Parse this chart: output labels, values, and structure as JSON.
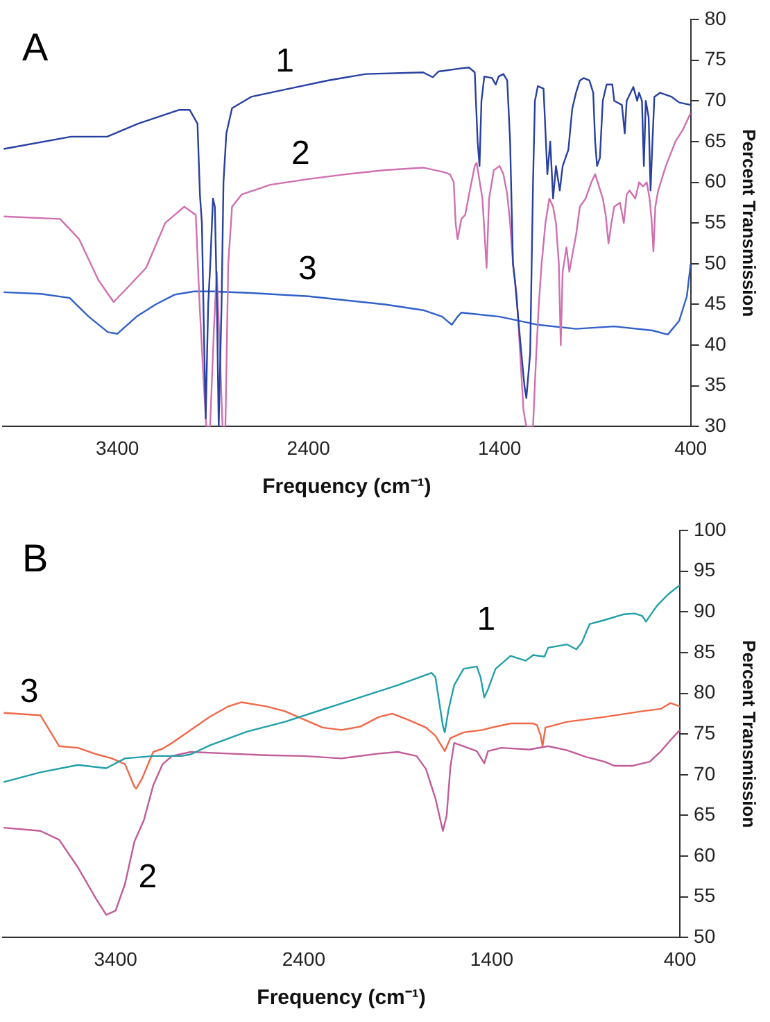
{
  "chart_data": [
    {
      "type": "line",
      "title": "A",
      "xlabel": "Frequency (cm⁻¹)",
      "ylabel": "Percent Transmission",
      "xlim": [
        4000,
        400
      ],
      "xticks": [
        3400,
        2400,
        1400,
        400
      ],
      "ylim": [
        30,
        80
      ],
      "yticks": [
        30,
        35,
        40,
        45,
        50,
        55,
        60,
        65,
        70,
        75,
        80
      ],
      "grid": false,
      "legend": false,
      "marker": "none",
      "line_style": "solid",
      "series": [
        {
          "name": "1",
          "color": "#2840a0",
          "x": [
            3995,
            3643,
            3454,
            3292,
            3076,
            3022,
            2981,
            2968,
            2958,
            2946,
            2938,
            2925,
            2914,
            2900,
            2890,
            2880,
            2870,
            2855,
            2845,
            2830,
            2800,
            2700,
            2500,
            2300,
            2100,
            1800,
            1750,
            1720,
            1600,
            1560,
            1530,
            1515,
            1505,
            1495,
            1480,
            1440,
            1420,
            1405,
            1380,
            1360,
            1345,
            1330,
            1320,
            1290,
            1270,
            1260,
            1240,
            1225,
            1215,
            1200,
            1170,
            1150,
            1135,
            1120,
            1105,
            1085,
            1070,
            1040,
            1020,
            1000,
            980,
            960,
            930,
            910,
            900,
            890,
            875,
            860,
            840,
            810,
            800,
            760,
            745,
            735,
            700,
            680,
            670,
            655,
            645,
            635,
            620,
            610,
            600,
            590,
            560,
            500,
            460,
            400
          ],
          "values": [
            64.1,
            65.6,
            65.6,
            67.2,
            68.9,
            68.9,
            67.2,
            58.4,
            55,
            40,
            31,
            45,
            50,
            58,
            57,
            46,
            30,
            45,
            60,
            66,
            69.1,
            70.5,
            71.5,
            72.5,
            73.3,
            73.5,
            72.9,
            73.6,
            74,
            74.1,
            73.5,
            65,
            62,
            70,
            73,
            72.8,
            72,
            73,
            73.3,
            72.5,
            65,
            50,
            48,
            40,
            35,
            33.5,
            39,
            60,
            70,
            71.8,
            71.5,
            61,
            65,
            58,
            62,
            59,
            62,
            64,
            69,
            71,
            72.5,
            72.8,
            72.5,
            71,
            65,
            62,
            63,
            70,
            72,
            72,
            70,
            69.5,
            66,
            70,
            71.7,
            70,
            71,
            70,
            62,
            70,
            68,
            59,
            65,
            70.5,
            71,
            70.5,
            69.8,
            69.5
          ]
        },
        {
          "name": "2",
          "color": "#d070b0",
          "x": [
            3995,
            3700,
            3600,
            3500,
            3420,
            3350,
            3250,
            3150,
            3050,
            2990,
            2970,
            2950,
            2935,
            2915,
            2895,
            2880,
            2865,
            2850,
            2835,
            2820,
            2800,
            2750,
            2600,
            2400,
            2200,
            2000,
            1800,
            1700,
            1660,
            1640,
            1630,
            1620,
            1600,
            1580,
            1560,
            1530,
            1520,
            1490,
            1468,
            1455,
            1430,
            1400,
            1380,
            1360,
            1345,
            1330,
            1310,
            1290,
            1275,
            1260,
            1240,
            1225,
            1210,
            1195,
            1180,
            1160,
            1140,
            1120,
            1105,
            1090,
            1080,
            1070,
            1050,
            1035,
            1020,
            1000,
            980,
            950,
            920,
            900,
            880,
            860,
            845,
            830,
            815,
            800,
            770,
            750,
            735,
            720,
            690,
            670,
            650,
            630,
            615,
            605,
            595,
            585,
            570,
            530,
            480,
            440,
            400
          ],
          "values": [
            55.8,
            55.5,
            53,
            48,
            45.3,
            47,
            49.5,
            55,
            57,
            56,
            45,
            36,
            30,
            30,
            42,
            49,
            40,
            30,
            30,
            50,
            57,
            58.5,
            59.7,
            60.4,
            61,
            61.5,
            61.8,
            61.3,
            61,
            60,
            55,
            53,
            55.5,
            56,
            58.5,
            62,
            62.4,
            58,
            49.5,
            58,
            61.5,
            62,
            61,
            58.5,
            55,
            50,
            46,
            38,
            32,
            30,
            30,
            30,
            38,
            45,
            50,
            55,
            58,
            57,
            55,
            50,
            40,
            49,
            52,
            49,
            51,
            53.5,
            57,
            58,
            60,
            61,
            59.5,
            58,
            56,
            52.5,
            55,
            57,
            57.5,
            55,
            58.5,
            59,
            58,
            60,
            59.5,
            60,
            58,
            55.5,
            51.5,
            57,
            59,
            62,
            65,
            66.5,
            68.5
          ]
        },
        {
          "name": "3",
          "color": "#3060c8",
          "x": [
            3995,
            3800,
            3650,
            3550,
            3450,
            3400,
            3300,
            3200,
            3100,
            3000,
            2900,
            2700,
            2400,
            2000,
            1800,
            1700,
            1650,
            1620,
            1600,
            1400,
            1200,
            1000,
            800,
            600,
            520,
            460,
            420,
            400
          ],
          "values": [
            46.5,
            46.3,
            45.8,
            43.5,
            41.6,
            41.4,
            43.5,
            45,
            46.2,
            46.6,
            46.6,
            46.4,
            46,
            45,
            44.3,
            43.5,
            42.5,
            43.5,
            44,
            43.5,
            42.5,
            42,
            42.3,
            41.8,
            41.3,
            43,
            46,
            50
          ]
        }
      ]
    },
    {
      "type": "line",
      "title": "B",
      "xlabel": "Frequency (cm⁻¹)",
      "ylabel": "Percent Transmission",
      "xlim": [
        4000,
        400
      ],
      "xticks": [
        3400,
        2400,
        1400,
        400
      ],
      "ylim": [
        50,
        100
      ],
      "yticks": [
        50,
        55,
        60,
        65,
        70,
        75,
        80,
        85,
        90,
        95,
        100
      ],
      "grid": false,
      "legend": false,
      "marker": "none",
      "line_style": "solid",
      "series": [
        {
          "name": "1",
          "color": "#20a0a8",
          "x": [
            3995,
            3800,
            3600,
            3450,
            3350,
            3200,
            3050,
            3000,
            2900,
            2700,
            2500,
            2300,
            2100,
            1900,
            1720,
            1700,
            1680,
            1660,
            1650,
            1630,
            1600,
            1550,
            1480,
            1460,
            1440,
            1420,
            1380,
            1300,
            1220,
            1180,
            1120,
            1100,
            1000,
            950,
            920,
            880,
            800,
            700,
            640,
            600,
            580,
            560,
            520,
            460,
            400
          ],
          "values": [
            69.1,
            70.3,
            71.2,
            70.8,
            72,
            72.3,
            72.3,
            72.5,
            73.6,
            75.3,
            76.5,
            78,
            79.5,
            81,
            82.5,
            82,
            79,
            76,
            75.2,
            78,
            81,
            83,
            83.3,
            82,
            79.5,
            80.5,
            83,
            84.6,
            84,
            84.7,
            84.5,
            85.6,
            86,
            85.4,
            86.3,
            88.5,
            89,
            89.7,
            89.8,
            89.5,
            88.8,
            89.5,
            90.8,
            92.2,
            93.3
          ]
        },
        {
          "name": "2",
          "color": "#c05c98",
          "x": [
            3995,
            3800,
            3700,
            3600,
            3500,
            3450,
            3400,
            3350,
            3300,
            3250,
            3200,
            3150,
            3100,
            3000,
            2800,
            2600,
            2400,
            2200,
            2000,
            1900,
            1800,
            1750,
            1700,
            1660,
            1640,
            1620,
            1600,
            1550,
            1480,
            1440,
            1420,
            1350,
            1200,
            1100,
            1000,
            900,
            800,
            750,
            650,
            560,
            500,
            440,
            400
          ],
          "values": [
            63.5,
            63.1,
            62,
            58.6,
            54.6,
            52.8,
            53.3,
            56.6,
            61.8,
            64.4,
            68.7,
            71.3,
            72.3,
            72.8,
            72.6,
            72.4,
            72.3,
            72,
            72.6,
            72.8,
            72.3,
            70.7,
            67.1,
            63.1,
            65,
            71,
            73.9,
            73.5,
            72.9,
            71.4,
            72.9,
            73.3,
            73.1,
            73.5,
            73,
            72.2,
            71.6,
            71.1,
            71.1,
            71.6,
            72.9,
            74.5,
            75.5
          ]
        },
        {
          "name": "3",
          "color": "#f06848",
          "x": [
            3995,
            3800,
            3700,
            3600,
            3500,
            3420,
            3350,
            3300,
            3290,
            3260,
            3200,
            3150,
            3100,
            3000,
            2900,
            2800,
            2730,
            2600,
            2500,
            2400,
            2300,
            2200,
            2100,
            2000,
            1930,
            1850,
            1750,
            1700,
            1650,
            1620,
            1550,
            1450,
            1400,
            1300,
            1180,
            1160,
            1140,
            1130,
            1115,
            1000,
            800,
            600,
            500,
            450,
            400
          ],
          "values": [
            77.6,
            77.3,
            73.5,
            73.3,
            72.5,
            72,
            71.3,
            68.5,
            68.3,
            69.5,
            72.8,
            73.2,
            73.9,
            75.5,
            77.1,
            78.4,
            78.9,
            78.4,
            77.8,
            76.8,
            75.8,
            75.5,
            75.9,
            77.1,
            77.5,
            76.8,
            75.8,
            74.8,
            72.9,
            74.5,
            75.2,
            75.5,
            75.8,
            76.3,
            76.3,
            76.1,
            74.8,
            73.5,
            75.8,
            76.5,
            77.1,
            77.8,
            78.1,
            78.8,
            78.4
          ]
        }
      ]
    }
  ]
}
